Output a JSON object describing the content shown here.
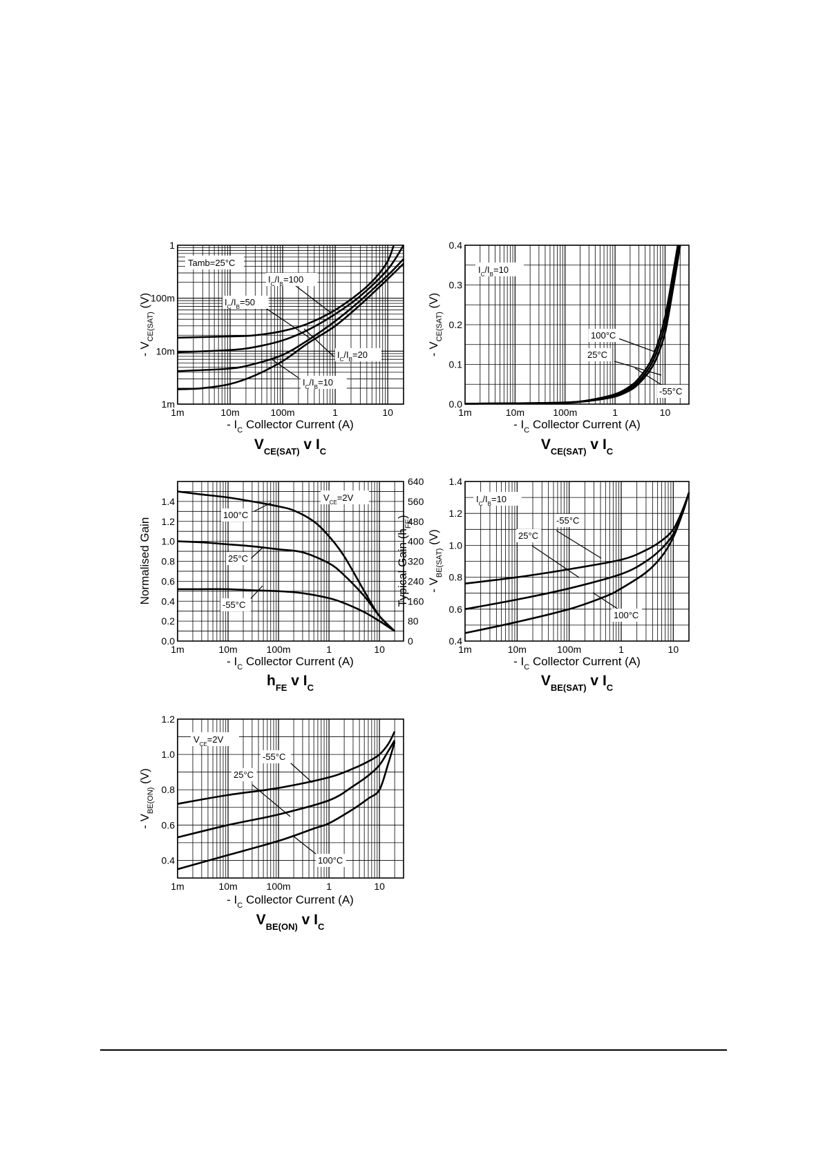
{
  "chart_data": [
    {
      "type": "line",
      "x_scale": "log",
      "y_scale": "log",
      "xlim": [
        0.001,
        20
      ],
      "ylim": [
        0.001,
        1
      ],
      "x_ticks": [
        {
          "v": 0.001,
          "t": "1m"
        },
        {
          "v": 0.01,
          "t": "10m"
        },
        {
          "v": 0.1,
          "t": "100m"
        },
        {
          "v": 1,
          "t": "1"
        },
        {
          "v": 10,
          "t": "10"
        }
      ],
      "y_ticks": [
        {
          "v": 0.001,
          "t": "1m"
        },
        {
          "v": 0.01,
          "t": "10m"
        },
        {
          "v": 0.1,
          "t": "100m"
        },
        {
          "v": 1,
          "t": "1"
        }
      ],
      "ylabel": {
        "pre": "- V",
        "sub": "CE(SAT)",
        "post": " (V)"
      },
      "xlabel": {
        "pre": "- I",
        "sub": "C",
        "post": " Collector Current (A)"
      },
      "title": {
        "main": "V",
        "sub": "CE(SAT)",
        "mid": " v I",
        "sub2": "C"
      },
      "legend_box": {
        "pre": "Tamb=25°C",
        "sub": "",
        "post": ""
      },
      "grid": true,
      "series": [
        {
          "name": "IC/IB=100",
          "x": [
            0.001,
            0.01,
            0.03,
            0.1,
            0.3,
            1,
            3,
            6,
            10,
            13
          ],
          "y": [
            0.018,
            0.019,
            0.02,
            0.024,
            0.033,
            0.06,
            0.13,
            0.25,
            0.5,
            1.0
          ]
        },
        {
          "name": "IC/IB=50",
          "x": [
            0.001,
            0.01,
            0.03,
            0.1,
            0.3,
            1,
            3,
            10,
            20
          ],
          "y": [
            0.0095,
            0.0105,
            0.012,
            0.016,
            0.025,
            0.05,
            0.11,
            0.35,
            1.0
          ]
        },
        {
          "name": "IC/IB=20",
          "x": [
            0.001,
            0.01,
            0.03,
            0.1,
            0.3,
            1,
            3,
            10,
            20
          ],
          "y": [
            0.0042,
            0.0047,
            0.0058,
            0.0085,
            0.016,
            0.037,
            0.09,
            0.27,
            0.55
          ]
        },
        {
          "name": "IC/IB=10",
          "x": [
            0.001,
            0.003,
            0.01,
            0.03,
            0.1,
            0.3,
            1,
            3,
            10,
            20
          ],
          "y": [
            0.0019,
            0.002,
            0.0024,
            0.0035,
            0.0065,
            0.014,
            0.03,
            0.075,
            0.23,
            0.45
          ]
        }
      ],
      "annotations": [
        {
          "pre": "I",
          "sub": "C",
          "mid": "/I",
          "sub2": "B",
          "post": "=100"
        },
        {
          "pre": "I",
          "sub": "C",
          "mid": "/I",
          "sub2": "B",
          "post": "=50"
        },
        {
          "pre": "I",
          "sub": "C",
          "mid": "/I",
          "sub2": "B",
          "post": "=20"
        },
        {
          "pre": "I",
          "sub": "C",
          "mid": "/I",
          "sub2": "B",
          "post": "=10"
        }
      ]
    },
    {
      "type": "line",
      "x_scale": "log",
      "y_scale": "linear",
      "xlim": [
        0.001,
        30
      ],
      "ylim": [
        0,
        0.4
      ],
      "x_ticks": [
        {
          "v": 0.001,
          "t": "1m"
        },
        {
          "v": 0.01,
          "t": "10m"
        },
        {
          "v": 0.1,
          "t": "100m"
        },
        {
          "v": 1,
          "t": "1"
        },
        {
          "v": 10,
          "t": "10"
        }
      ],
      "y_ticks": [
        {
          "v": 0,
          "t": "0.0"
        },
        {
          "v": 0.1,
          "t": "0.1"
        },
        {
          "v": 0.2,
          "t": "0.2"
        },
        {
          "v": 0.3,
          "t": "0.3"
        },
        {
          "v": 0.4,
          "t": "0.4"
        }
      ],
      "ylabel": {
        "pre": "- V",
        "sub": "CE(SAT)",
        "post": " (V)"
      },
      "xlabel": {
        "pre": "- I",
        "sub": "C",
        "post": " Collector Current (A)"
      },
      "title": {
        "main": "V",
        "sub": "CE(SAT)",
        "mid": " v I",
        "sub2": "C"
      },
      "legend_box": {
        "pre": "I",
        "sub": "C",
        "post": "/I",
        "sub2": "B",
        "post2": "=10"
      },
      "grid": true,
      "series": [
        {
          "name": "100°C",
          "x": [
            0.001,
            0.01,
            0.1,
            0.3,
            1,
            2,
            3,
            5,
            7,
            10,
            14,
            18
          ],
          "y": [
            0.001,
            0.002,
            0.004,
            0.01,
            0.025,
            0.045,
            0.065,
            0.105,
            0.15,
            0.22,
            0.32,
            0.4
          ]
        },
        {
          "name": "25°C",
          "x": [
            0.001,
            0.01,
            0.1,
            0.3,
            1,
            2,
            3,
            5,
            7,
            10,
            14,
            19
          ],
          "y": [
            0.001,
            0.002,
            0.004,
            0.009,
            0.022,
            0.04,
            0.058,
            0.095,
            0.135,
            0.2,
            0.3,
            0.4
          ]
        },
        {
          "name": "-55°C",
          "x": [
            0.001,
            0.01,
            0.1,
            0.3,
            1,
            2,
            3,
            5,
            7,
            10,
            14,
            20
          ],
          "y": [
            0.001,
            0.002,
            0.003,
            0.008,
            0.019,
            0.035,
            0.052,
            0.085,
            0.12,
            0.18,
            0.28,
            0.4
          ]
        }
      ],
      "annotations": [
        {
          "pre": "100°C",
          "sub": "",
          "mid": "",
          "sub2": "",
          "post": ""
        },
        {
          "pre": "25°C",
          "sub": "",
          "mid": "",
          "sub2": "",
          "post": ""
        },
        {
          "pre": "-55°C",
          "sub": "",
          "mid": "",
          "sub2": "",
          "post": ""
        }
      ]
    },
    {
      "type": "line",
      "x_scale": "log",
      "y_scale": "linear",
      "xlim": [
        0.001,
        30
      ],
      "ylim": [
        0,
        1.6
      ],
      "x_ticks": [
        {
          "v": 0.001,
          "t": "1m"
        },
        {
          "v": 0.01,
          "t": "10m"
        },
        {
          "v": 0.1,
          "t": "100m"
        },
        {
          "v": 1,
          "t": "1"
        },
        {
          "v": 10,
          "t": "10"
        }
      ],
      "y_ticks": [
        {
          "v": 0,
          "t": "0.0"
        },
        {
          "v": 0.2,
          "t": "0.2"
        },
        {
          "v": 0.4,
          "t": "0.4"
        },
        {
          "v": 0.6,
          "t": "0.6"
        },
        {
          "v": 0.8,
          "t": "0.8"
        },
        {
          "v": 1.0,
          "t": "1.0"
        },
        {
          "v": 1.2,
          "t": "1.2"
        },
        {
          "v": 1.4,
          "t": "1.4"
        }
      ],
      "y2_ticks": [
        {
          "v": 0,
          "t": "0"
        },
        {
          "v": 0.2,
          "t": "80"
        },
        {
          "v": 0.4,
          "t": "160"
        },
        {
          "v": 0.6,
          "t": "240"
        },
        {
          "v": 0.8,
          "t": "320"
        },
        {
          "v": 1.0,
          "t": "400"
        },
        {
          "v": 1.2,
          "t": "480"
        },
        {
          "v": 1.4,
          "t": "560"
        },
        {
          "v": 1.6,
          "t": "640"
        }
      ],
      "ylabel": {
        "pre": "Normalised Gain",
        "sub": "",
        "post": ""
      },
      "y2label": {
        "pre": "Typical Gain (h",
        "sub": "FE",
        "post": ")"
      },
      "xlabel": {
        "pre": "- I",
        "sub": "C",
        "post": " Collector Current (A)"
      },
      "title": {
        "main": "h",
        "sub": "FE",
        "mid": " v I",
        "sub2": "C"
      },
      "legend_box": {
        "pre": "V",
        "sub": "CE",
        "post": "=2V"
      },
      "grid": true,
      "series": [
        {
          "name": "100°C",
          "x": [
            0.001,
            0.003,
            0.01,
            0.03,
            0.1,
            0.2,
            0.5,
            1,
            2,
            5,
            10,
            20
          ],
          "y": [
            1.5,
            1.47,
            1.44,
            1.4,
            1.35,
            1.31,
            1.2,
            1.05,
            0.85,
            0.5,
            0.25,
            0.1
          ]
        },
        {
          "name": "25°C",
          "x": [
            0.001,
            0.003,
            0.01,
            0.03,
            0.1,
            0.3,
            1,
            2,
            5,
            10,
            20
          ],
          "y": [
            1.0,
            0.99,
            0.97,
            0.95,
            0.92,
            0.89,
            0.78,
            0.66,
            0.45,
            0.25,
            0.1
          ]
        },
        {
          "name": "-55°C",
          "x": [
            0.001,
            0.003,
            0.01,
            0.03,
            0.1,
            0.3,
            1,
            2,
            5,
            10,
            20
          ],
          "y": [
            0.52,
            0.52,
            0.52,
            0.51,
            0.5,
            0.48,
            0.43,
            0.38,
            0.29,
            0.2,
            0.1
          ]
        }
      ],
      "annotations": [
        {
          "pre": "100°C",
          "sub": "",
          "mid": "",
          "sub2": "",
          "post": ""
        },
        {
          "pre": "25°C",
          "sub": "",
          "mid": "",
          "sub2": "",
          "post": ""
        },
        {
          "pre": "-55°C",
          "sub": "",
          "mid": "",
          "sub2": "",
          "post": ""
        }
      ]
    },
    {
      "type": "line",
      "x_scale": "log",
      "y_scale": "linear",
      "xlim": [
        0.001,
        20
      ],
      "ylim": [
        0.4,
        1.4
      ],
      "x_ticks": [
        {
          "v": 0.001,
          "t": "1m"
        },
        {
          "v": 0.01,
          "t": "10m"
        },
        {
          "v": 0.1,
          "t": "100m"
        },
        {
          "v": 1,
          "t": "1"
        },
        {
          "v": 10,
          "t": "10"
        }
      ],
      "y_ticks": [
        {
          "v": 0.4,
          "t": "0.4"
        },
        {
          "v": 0.6,
          "t": "0.6"
        },
        {
          "v": 0.8,
          "t": "0.8"
        },
        {
          "v": 1.0,
          "t": "1.0"
        },
        {
          "v": 1.2,
          "t": "1.2"
        },
        {
          "v": 1.4,
          "t": "1.4"
        }
      ],
      "ylabel": {
        "pre": "- V",
        "sub": "BE(SAT)",
        "post": " (V)"
      },
      "xlabel": {
        "pre": "- I",
        "sub": "C",
        "post": " Collector Current (A)"
      },
      "title": {
        "main": "V",
        "sub": "BE(SAT)",
        "mid": " v I",
        "sub2": "C"
      },
      "legend_box": {
        "pre": "I",
        "sub": "C",
        "post": "/I",
        "sub2": "B",
        "post2": "=10"
      },
      "grid": true,
      "series": [
        {
          "name": "-55°C",
          "x": [
            0.001,
            0.01,
            0.1,
            1,
            3,
            6,
            10,
            15,
            20
          ],
          "y": [
            0.76,
            0.8,
            0.85,
            0.91,
            0.97,
            1.03,
            1.1,
            1.22,
            1.33
          ]
        },
        {
          "name": "25°C",
          "x": [
            0.001,
            0.01,
            0.1,
            1,
            3,
            6,
            10,
            15,
            20
          ],
          "y": [
            0.6,
            0.66,
            0.73,
            0.82,
            0.9,
            0.98,
            1.07,
            1.2,
            1.33
          ]
        },
        {
          "name": "100°C",
          "x": [
            0.001,
            0.01,
            0.1,
            0.5,
            1,
            3,
            6,
            10,
            15,
            20
          ],
          "y": [
            0.45,
            0.52,
            0.6,
            0.68,
            0.73,
            0.83,
            0.93,
            1.05,
            1.2,
            1.33
          ]
        }
      ],
      "annotations": [
        {
          "pre": "-55°C",
          "sub": "",
          "mid": "",
          "sub2": "",
          "post": ""
        },
        {
          "pre": "25°C",
          "sub": "",
          "mid": "",
          "sub2": "",
          "post": ""
        },
        {
          "pre": "100°C",
          "sub": "",
          "mid": "",
          "sub2": "",
          "post": ""
        }
      ]
    },
    {
      "type": "line",
      "x_scale": "log",
      "y_scale": "linear",
      "xlim": [
        0.001,
        30
      ],
      "ylim": [
        0.3,
        1.2
      ],
      "x_ticks": [
        {
          "v": 0.001,
          "t": "1m"
        },
        {
          "v": 0.01,
          "t": "10m"
        },
        {
          "v": 0.1,
          "t": "100m"
        },
        {
          "v": 1,
          "t": "1"
        },
        {
          "v": 10,
          "t": "10"
        }
      ],
      "y_ticks": [
        {
          "v": 0.4,
          "t": "0.4"
        },
        {
          "v": 0.6,
          "t": "0.6"
        },
        {
          "v": 0.8,
          "t": "0.8"
        },
        {
          "v": 1.0,
          "t": "1.0"
        },
        {
          "v": 1.2,
          "t": "1.2"
        }
      ],
      "ylabel": {
        "pre": "- V",
        "sub": "BE(ON)",
        "post": " (V)"
      },
      "xlabel": {
        "pre": "- I",
        "sub": "C",
        "post": " Collector Current (A)"
      },
      "title": {
        "main": "V",
        "sub": "BE(ON)",
        "mid": " v I",
        "sub2": "C"
      },
      "legend_box": {
        "pre": "V",
        "sub": "CE",
        "post": "=2V"
      },
      "grid": true,
      "series": [
        {
          "name": "-55°C",
          "x": [
            0.001,
            0.01,
            0.1,
            1,
            3,
            6,
            10,
            15,
            20
          ],
          "y": [
            0.72,
            0.77,
            0.81,
            0.87,
            0.92,
            0.96,
            1.0,
            1.06,
            1.13
          ]
        },
        {
          "name": "25°C",
          "x": [
            0.001,
            0.01,
            0.1,
            1,
            3,
            6,
            10,
            15,
            20
          ],
          "y": [
            0.53,
            0.6,
            0.66,
            0.74,
            0.82,
            0.88,
            0.94,
            1.02,
            1.08
          ]
        },
        {
          "name": "100°C",
          "x": [
            0.001,
            0.01,
            0.1,
            0.5,
            1,
            3,
            6,
            10,
            15,
            20
          ],
          "y": [
            0.35,
            0.43,
            0.51,
            0.58,
            0.61,
            0.69,
            0.75,
            0.8,
            0.95,
            1.07
          ]
        }
      ],
      "annotations": [
        {
          "pre": "-55°C",
          "sub": "",
          "mid": "",
          "sub2": "",
          "post": ""
        },
        {
          "pre": "25°C",
          "sub": "",
          "mid": "",
          "sub2": "",
          "post": ""
        },
        {
          "pre": "100°C",
          "sub": "",
          "mid": "",
          "sub2": "",
          "post": ""
        }
      ]
    }
  ]
}
